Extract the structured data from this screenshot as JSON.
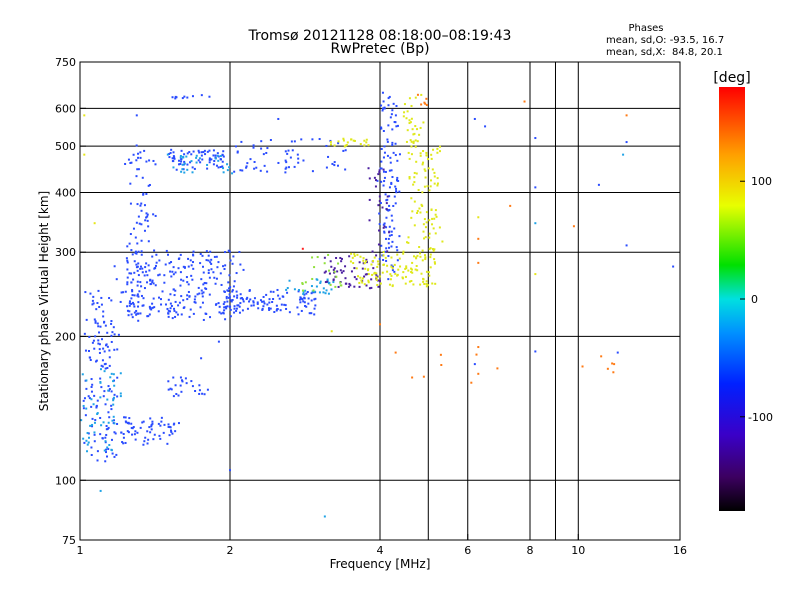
{
  "chart_data": {
    "type": "scatter",
    "title": "Tromsø 20121128 08:18:00–08:19:43",
    "subtitle": "RwPretec (Bp)",
    "xlabel": "Frequency [MHz]",
    "ylabel": "Stationary phase Virtual Height [km]",
    "x_scale": "log",
    "y_scale": "log",
    "xlim": [
      1,
      16
    ],
    "ylim": [
      75,
      750
    ],
    "x_ticks": [
      1,
      2,
      4,
      6,
      8,
      10,
      16
    ],
    "y_ticks": [
      75,
      100,
      200,
      300,
      400,
      500,
      600,
      750
    ],
    "x_grid": [
      2,
      4,
      5,
      6,
      8,
      9,
      10
    ],
    "y_grid": [
      100,
      200,
      300,
      400,
      500,
      600
    ],
    "grid": true,
    "phases_box": {
      "heading": "Phases",
      "line_o": "mean, sd,O: -93.5, 16.7",
      "line_x": "mean, sd,X:  84.8, 20.1"
    },
    "colorbar": {
      "label": "[deg]",
      "range": [
        -180,
        180
      ],
      "ticks": [
        100,
        0,
        -100
      ],
      "position": "right"
    },
    "series": [
      {
        "name": "",
        "color_hex": "#2a4cff",
        "phase_deg": -100,
        "traces": [
          {
            "f0": 1.03,
            "f1": 1.18,
            "h0": 110,
            "h1": 250,
            "jitter": 0.1,
            "n": 140
          },
          {
            "f0": 1.18,
            "f1": 1.55,
            "h0": 120,
            "h1": 135,
            "jitter": 0.08,
            "n": 70
          },
          {
            "f0": 1.25,
            "f1": 1.4,
            "h0": 215,
            "h1": 500,
            "jitter": 0.06,
            "n": 90
          },
          {
            "f0": 1.2,
            "f1": 2.1,
            "h0": 220,
            "h1": 300,
            "jitter": 0.09,
            "n": 260
          },
          {
            "f0": 1.5,
            "f1": 1.95,
            "h0": 445,
            "h1": 490,
            "jitter": 0.03,
            "n": 70
          },
          {
            "f0": 1.95,
            "f1": 3.0,
            "h0": 222,
            "h1": 250,
            "jitter": 0.03,
            "n": 110
          },
          {
            "f0": 2.0,
            "f1": 3.5,
            "h0": 440,
            "h1": 520,
            "jitter": 0.02,
            "n": 60
          },
          {
            "f0": 4.05,
            "f1": 4.3,
            "h0": 260,
            "h1": 640,
            "jitter": 0.1,
            "n": 120
          },
          {
            "f0": 1.5,
            "f1": 1.85,
            "h0": 630,
            "h1": 640,
            "jitter": 0.01,
            "n": 10
          },
          {
            "f0": 1.48,
            "f1": 1.8,
            "h0": 150,
            "h1": 165,
            "jitter": 0.03,
            "n": 25
          }
        ]
      },
      {
        "name": "",
        "color_hex": "#1fa3e6",
        "phase_deg": -70,
        "traces": [
          {
            "f0": 1.03,
            "f1": 1.2,
            "h0": 115,
            "h1": 170,
            "jitter": 0.1,
            "n": 50
          },
          {
            "f0": 1.5,
            "f1": 2.1,
            "h0": 440,
            "h1": 480,
            "jitter": 0.04,
            "n": 30
          },
          {
            "f0": 2.6,
            "f1": 3.2,
            "h0": 245,
            "h1": 265,
            "jitter": 0.03,
            "n": 30
          }
        ]
      },
      {
        "name": "",
        "color_hex": "#4b1fa0",
        "phase_deg": -130,
        "traces": [
          {
            "f0": 3.1,
            "f1": 4.0,
            "h0": 250,
            "h1": 300,
            "jitter": 0.03,
            "n": 60
          },
          {
            "f0": 3.8,
            "f1": 4.2,
            "h0": 300,
            "h1": 450,
            "jitter": 0.04,
            "n": 25
          }
        ]
      },
      {
        "name": "",
        "color_hex": "#dfe81b",
        "phase_deg": 90,
        "traces": [
          {
            "f0": 3.5,
            "f1": 5.2,
            "h0": 255,
            "h1": 300,
            "jitter": 0.03,
            "n": 120
          },
          {
            "f0": 4.6,
            "f1": 5.3,
            "h0": 300,
            "h1": 500,
            "jitter": 0.06,
            "n": 90
          },
          {
            "f0": 4.5,
            "f1": 4.9,
            "h0": 500,
            "h1": 640,
            "jitter": 0.05,
            "n": 30
          },
          {
            "f0": 3.2,
            "f1": 3.8,
            "h0": 500,
            "h1": 520,
            "jitter": 0.03,
            "n": 20
          }
        ]
      },
      {
        "name": "",
        "color_hex": "#8fe03a",
        "phase_deg": 40,
        "traces": [
          {
            "f0": 2.8,
            "f1": 3.4,
            "h0": 240,
            "h1": 300,
            "jitter": 0.04,
            "n": 20
          }
        ]
      },
      {
        "name": "",
        "color_hex": "#ff7a14",
        "phase_deg": 150,
        "traces": [
          {
            "f0": 4.3,
            "f1": 12.5,
            "h0": 160,
            "h1": 190,
            "jitter": 0.05,
            "n": 10
          },
          {
            "f0": 4.7,
            "f1": 5.0,
            "h0": 600,
            "h1": 640,
            "jitter": 0.02,
            "n": 6
          }
        ]
      }
    ],
    "scattered_points": [
      {
        "x": 1.02,
        "y": 480,
        "color": "#e6e619"
      },
      {
        "x": 1.02,
        "y": 580,
        "color": "#e6e619"
      },
      {
        "x": 1.3,
        "y": 580,
        "color": "#2a4cff"
      },
      {
        "x": 2.5,
        "y": 570,
        "color": "#2a4cff"
      },
      {
        "x": 3.1,
        "y": 84,
        "color": "#1fa3e6"
      },
      {
        "x": 3.2,
        "y": 205,
        "color": "#e6e619"
      },
      {
        "x": 2.0,
        "y": 105,
        "color": "#2a4cff"
      },
      {
        "x": 1.1,
        "y": 95,
        "color": "#1fa3e6"
      },
      {
        "x": 6.2,
        "y": 570,
        "color": "#2a4cff"
      },
      {
        "x": 6.5,
        "y": 550,
        "color": "#2a4cff"
      },
      {
        "x": 7.8,
        "y": 620,
        "color": "#ff7a14"
      },
      {
        "x": 8.2,
        "y": 520,
        "color": "#2a4cff"
      },
      {
        "x": 8.2,
        "y": 410,
        "color": "#2a4cff"
      },
      {
        "x": 9.8,
        "y": 340,
        "color": "#ff7a14"
      },
      {
        "x": 11.0,
        "y": 415,
        "color": "#2a4cff"
      },
      {
        "x": 12.5,
        "y": 580,
        "color": "#ff7a14"
      },
      {
        "x": 12.5,
        "y": 510,
        "color": "#2a4cff"
      },
      {
        "x": 12.3,
        "y": 480,
        "color": "#1fa3e6"
      },
      {
        "x": 12.5,
        "y": 310,
        "color": "#2a4cff"
      },
      {
        "x": 15.5,
        "y": 280,
        "color": "#2a4cff"
      },
      {
        "x": 6.3,
        "y": 355,
        "color": "#e6e619"
      },
      {
        "x": 6.3,
        "y": 320,
        "color": "#ff7a14"
      },
      {
        "x": 6.3,
        "y": 285,
        "color": "#ff7a14"
      },
      {
        "x": 7.3,
        "y": 375,
        "color": "#ff7a14"
      },
      {
        "x": 8.2,
        "y": 345,
        "color": "#1fa3e6"
      },
      {
        "x": 8.2,
        "y": 270,
        "color": "#e6e619"
      },
      {
        "x": 6.2,
        "y": 175,
        "color": "#2a4cff"
      },
      {
        "x": 6.3,
        "y": 167,
        "color": "#ff7a14"
      },
      {
        "x": 12.0,
        "y": 185,
        "color": "#2a4cff"
      },
      {
        "x": 11.8,
        "y": 175,
        "color": "#ff7a14"
      },
      {
        "x": 8.2,
        "y": 186,
        "color": "#2a4cff"
      },
      {
        "x": 4.3,
        "y": 185,
        "color": "#ff7a14"
      },
      {
        "x": 5.3,
        "y": 183,
        "color": "#ff7a14"
      },
      {
        "x": 6.3,
        "y": 190,
        "color": "#ff7a14"
      },
      {
        "x": 4.0,
        "y": 212,
        "color": "#ff7a14"
      },
      {
        "x": 6.1,
        "y": 160,
        "color": "#ff7a14"
      },
      {
        "x": 1.07,
        "y": 345,
        "color": "#e6e619"
      },
      {
        "x": 2.8,
        "y": 305,
        "color": "#ff2020"
      },
      {
        "x": 1.75,
        "y": 180,
        "color": "#2a4cff"
      },
      {
        "x": 1.9,
        "y": 195,
        "color": "#2a4cff"
      }
    ]
  }
}
